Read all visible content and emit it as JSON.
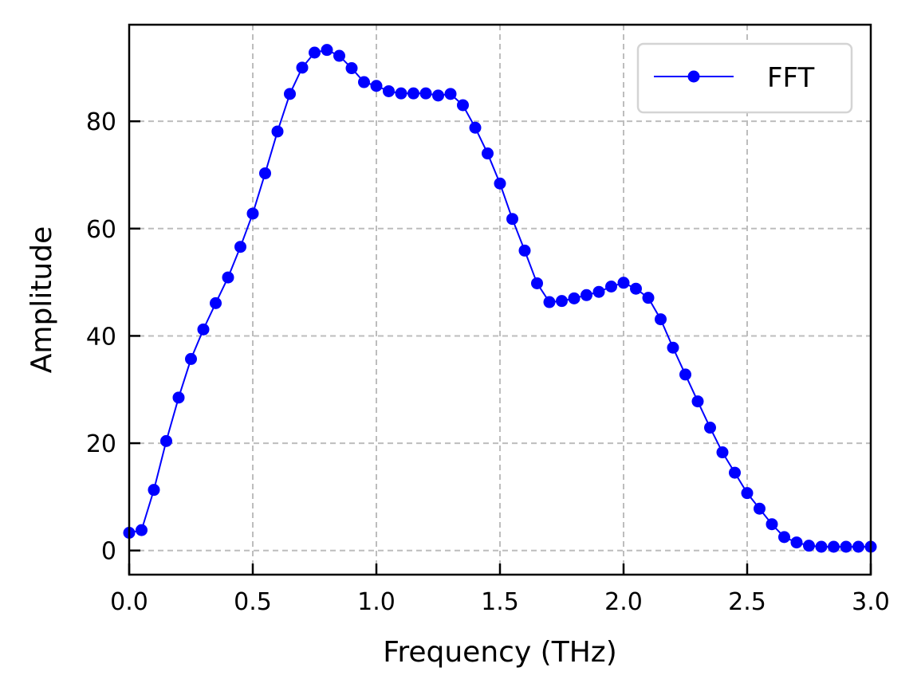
{
  "chart_data": {
    "type": "line",
    "title": "",
    "xlabel": "Frequency (THz)",
    "ylabel": "Amplitude",
    "xlim": [
      0.0,
      3.0
    ],
    "ylim": [
      -4.5,
      98
    ],
    "xticks": [
      0.0,
      0.5,
      1.0,
      1.5,
      2.0,
      2.5,
      3.0
    ],
    "xtick_labels": [
      "0.0",
      "0.5",
      "1.0",
      "1.5",
      "2.0",
      "2.5",
      "3.0"
    ],
    "yticks": [
      0,
      20,
      40,
      60,
      80
    ],
    "ytick_labels": [
      "0",
      "20",
      "40",
      "60",
      "80"
    ],
    "grid": true,
    "legend_position": "top-right",
    "series": [
      {
        "name": "FFT",
        "color": "#0000ff",
        "marker": "circle",
        "x": [
          0.0,
          0.05,
          0.1,
          0.15,
          0.2,
          0.25,
          0.3,
          0.35,
          0.4,
          0.45,
          0.5,
          0.55,
          0.6,
          0.65,
          0.7,
          0.75,
          0.8,
          0.85,
          0.9,
          0.95,
          1.0,
          1.05,
          1.1,
          1.15,
          1.2,
          1.25,
          1.3,
          1.35,
          1.4,
          1.45,
          1.5,
          1.55,
          1.6,
          1.65,
          1.7,
          1.75,
          1.8,
          1.85,
          1.9,
          1.95,
          2.0,
          2.05,
          2.1,
          2.15,
          2.2,
          2.25,
          2.3,
          2.35,
          2.4,
          2.45,
          2.5,
          2.55,
          2.6,
          2.65,
          2.7,
          2.75,
          2.8,
          2.85,
          2.9,
          2.95,
          3.0
        ],
        "values": [
          3.3,
          3.8,
          11.3,
          20.4,
          28.5,
          35.7,
          41.2,
          46.1,
          50.9,
          56.6,
          62.8,
          70.3,
          78.1,
          85.1,
          90.0,
          92.8,
          93.3,
          92.2,
          89.9,
          87.3,
          86.6,
          85.6,
          85.2,
          85.2,
          85.2,
          84.8,
          85.1,
          83.0,
          78.8,
          74.0,
          68.4,
          61.8,
          55.9,
          49.8,
          46.3,
          46.5,
          47.0,
          47.6,
          48.2,
          49.2,
          49.9,
          48.8,
          47.1,
          43.1,
          37.8,
          32.8,
          27.8,
          22.9,
          18.3,
          14.5,
          10.7,
          7.8,
          4.9,
          2.5,
          1.5,
          0.9,
          0.7,
          0.7,
          0.7,
          0.7,
          0.7
        ]
      }
    ]
  }
}
